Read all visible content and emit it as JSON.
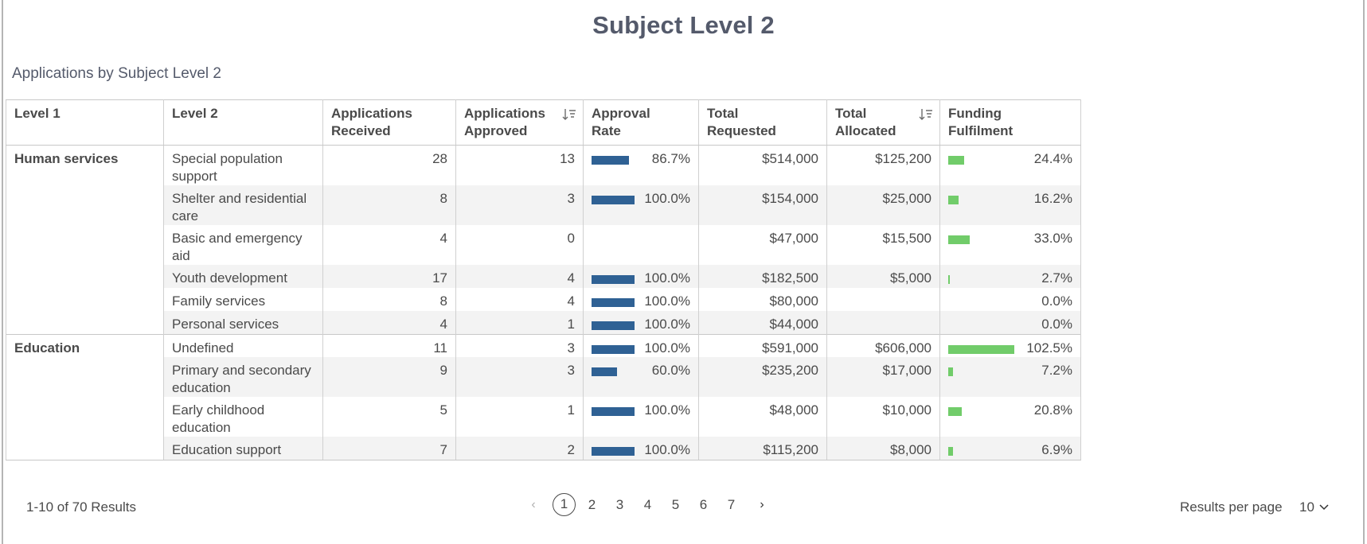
{
  "page_title": "Subject Level 2",
  "table_title": "Applications by Subject Level 2",
  "columns": [
    "Level 1",
    "Level 2",
    "Applications Received",
    "Applications Approved",
    "Approval Rate",
    "Total Requested",
    "Total Allocated",
    "Funding Fulfilment"
  ],
  "sorted_columns": [
    "Applications Approved",
    "Total Allocated"
  ],
  "colors": {
    "approval_bar": "#2f6194",
    "funding_bar": "#71cc6a",
    "title": "#545a6b"
  },
  "rows": [
    {
      "level1": "Human services",
      "level2": "Special population support",
      "received": "28",
      "approved": "13",
      "approval_rate": "86.7%",
      "approval_value": 86.7,
      "requested": "$514,000",
      "allocated": "$125,200",
      "fulfilment": "24.4%",
      "fulfilment_value": 24.4
    },
    {
      "level1": "",
      "level2": "Shelter and residential care",
      "received": "8",
      "approved": "3",
      "approval_rate": "100.0%",
      "approval_value": 100.0,
      "requested": "$154,000",
      "allocated": "$25,000",
      "fulfilment": "16.2%",
      "fulfilment_value": 16.2
    },
    {
      "level1": "",
      "level2": "Basic and emergency aid",
      "received": "4",
      "approved": "0",
      "approval_rate": "",
      "approval_value": 0,
      "requested": "$47,000",
      "allocated": "$15,500",
      "fulfilment": "33.0%",
      "fulfilment_value": 33.0
    },
    {
      "level1": "",
      "level2": "Youth development",
      "received": "17",
      "approved": "4",
      "approval_rate": "100.0%",
      "approval_value": 100.0,
      "requested": "$182,500",
      "allocated": "$5,000",
      "fulfilment": "2.7%",
      "fulfilment_value": 2.7
    },
    {
      "level1": "",
      "level2": "Family services",
      "received": "8",
      "approved": "4",
      "approval_rate": "100.0%",
      "approval_value": 100.0,
      "requested": "$80,000",
      "allocated": "",
      "fulfilment": "0.0%",
      "fulfilment_value": 0.0
    },
    {
      "level1": "",
      "level2": "Personal services",
      "received": "4",
      "approved": "1",
      "approval_rate": "100.0%",
      "approval_value": 100.0,
      "requested": "$44,000",
      "allocated": "",
      "fulfilment": "0.0%",
      "fulfilment_value": 0.0
    },
    {
      "level1": "Education",
      "level2": "Undefined",
      "received": "11",
      "approved": "3",
      "approval_rate": "100.0%",
      "approval_value": 100.0,
      "requested": "$591,000",
      "allocated": "$606,000",
      "fulfilment": "102.5%",
      "fulfilment_value": 102.5
    },
    {
      "level1": "",
      "level2": "Primary and secondary education",
      "received": "9",
      "approved": "3",
      "approval_rate": "60.0%",
      "approval_value": 60.0,
      "requested": "$235,200",
      "allocated": "$17,000",
      "fulfilment": "7.2%",
      "fulfilment_value": 7.2
    },
    {
      "level1": "",
      "level2": "Early childhood education",
      "received": "5",
      "approved": "1",
      "approval_rate": "100.0%",
      "approval_value": 100.0,
      "requested": "$48,000",
      "allocated": "$10,000",
      "fulfilment": "20.8%",
      "fulfilment_value": 20.8
    },
    {
      "level1": "",
      "level2": "Education support",
      "received": "7",
      "approved": "2",
      "approval_rate": "100.0%",
      "approval_value": 100.0,
      "requested": "$115,200",
      "allocated": "$8,000",
      "fulfilment": "6.9%",
      "fulfilment_value": 6.9
    }
  ],
  "footer": {
    "results_count": "1-10 of 70 Results",
    "pages": [
      "1",
      "2",
      "3",
      "4",
      "5",
      "6",
      "7"
    ],
    "current_page": "1",
    "results_per_page_label": "Results per page",
    "results_per_page_value": "10"
  }
}
